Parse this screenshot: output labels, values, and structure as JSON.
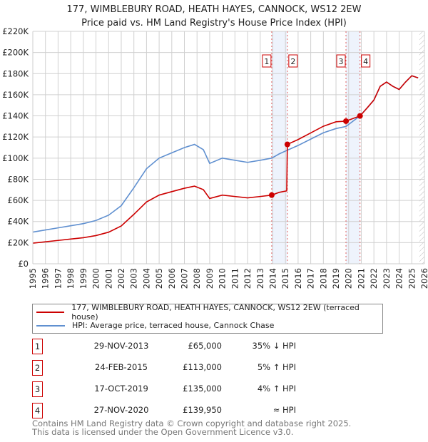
{
  "title": {
    "line1": "177, WIMBLEBURY ROAD, HEATH HAYES, CANNOCK, WS12 2EW",
    "line2": "Price paid vs. HM Land Registry's House Price Index (HPI)"
  },
  "chart_data": {
    "type": "line",
    "xlim": [
      1995,
      2026
    ],
    "ylim": [
      0,
      220000
    ],
    "xticks": [
      "1995",
      "1996",
      "1997",
      "1998",
      "1999",
      "2000",
      "2001",
      "2002",
      "2003",
      "2004",
      "2005",
      "2006",
      "2007",
      "2008",
      "2009",
      "2010",
      "2011",
      "2012",
      "2013",
      "2014",
      "2015",
      "2016",
      "2017",
      "2018",
      "2019",
      "2020",
      "2021",
      "2022",
      "2023",
      "2024",
      "2025",
      "2026"
    ],
    "yticks": [
      "£0",
      "£20K",
      "£40K",
      "£60K",
      "£80K",
      "£100K",
      "£120K",
      "£140K",
      "£160K",
      "£180K",
      "£200K",
      "£220K"
    ],
    "grid": true,
    "colors": {
      "property": "#cc0000",
      "hpi": "#6090d0",
      "shade": "#eef3fc",
      "marker": "#cc0000"
    },
    "series": [
      {
        "name": "177, WIMBLEBURY ROAD, HEATH HAYES, CANNOCK, WS12 2EW (terraced house)",
        "x": [
          1995,
          1996,
          1997,
          1998,
          1999,
          2000,
          2001,
          2002,
          2003,
          2004,
          2005,
          2006,
          2007,
          2007.8,
          2008.5,
          2009,
          2010,
          2011,
          2012,
          2013,
          2013.91,
          2014.5,
          2015.1,
          2015.15,
          2016,
          2017,
          2018,
          2019,
          2019.79,
          2020,
          2020.9,
          2021.5,
          2022,
          2022.5,
          2023,
          2023.5,
          2024,
          2024.5,
          2025,
          2025.5
        ],
        "y": [
          19500,
          20800,
          22100,
          23400,
          24700,
          26700,
          29900,
          35800,
          46800,
          58500,
          65000,
          68300,
          71500,
          73500,
          70200,
          61800,
          65000,
          63700,
          62400,
          63700,
          65000,
          67600,
          69000,
          113000,
          117600,
          123900,
          130200,
          134400,
          135000,
          136000,
          139950,
          148000,
          155000,
          168000,
          172000,
          168000,
          165000,
          172000,
          178000,
          176000
        ]
      },
      {
        "name": "HPI: Average price, terraced house, Cannock Chase",
        "x": [
          1995,
          1996,
          1997,
          1998,
          1999,
          2000,
          2001,
          2002,
          2003,
          2004,
          2005,
          2006,
          2007,
          2007.8,
          2008.5,
          2009,
          2010,
          2011,
          2012,
          2013,
          2013.91,
          2014.5,
          2015.15,
          2016,
          2017,
          2018,
          2019,
          2019.79,
          2020.9,
          2021.5,
          2022,
          2022.5,
          2023,
          2023.5,
          2024,
          2024.5,
          2025,
          2025.5
        ],
        "y": [
          30000,
          32000,
          34000,
          36000,
          38000,
          41000,
          46000,
          55000,
          72000,
          90000,
          100000,
          105000,
          110000,
          113000,
          108000,
          95000,
          100000,
          98000,
          96000,
          98000,
          100000,
          104000,
          107500,
          112000,
          118000,
          124000,
          128000,
          130000,
          140000,
          148000,
          155000,
          168000,
          172000,
          168000,
          165000,
          172000,
          178000,
          176000
        ]
      }
    ],
    "sales": [
      {
        "id": "1",
        "x": 2013.91,
        "date": "29-NOV-2013",
        "price": "£65,000",
        "value": 65000,
        "hpi": "35% ↓ HPI"
      },
      {
        "id": "2",
        "x": 2015.15,
        "date": "24-FEB-2015",
        "price": "£113,000",
        "value": 113000,
        "hpi": "5% ↑ HPI"
      },
      {
        "id": "3",
        "x": 2019.79,
        "date": "17-OCT-2019",
        "price": "£135,000",
        "value": 135000,
        "hpi": "4% ↑ HPI"
      },
      {
        "id": "4",
        "x": 2020.9,
        "date": "27-NOV-2020",
        "price": "£139,950",
        "value": 139950,
        "hpi": "≈ HPI"
      }
    ],
    "shaded_periods": [
      [
        2013.91,
        2015.15
      ],
      [
        2019.79,
        2020.9
      ]
    ],
    "forecast_from": 2025.6
  },
  "footer": {
    "line1": "Contains HM Land Registry data © Crown copyright and database right 2025.",
    "line2": "This data is licensed under the Open Government Licence v3.0."
  }
}
